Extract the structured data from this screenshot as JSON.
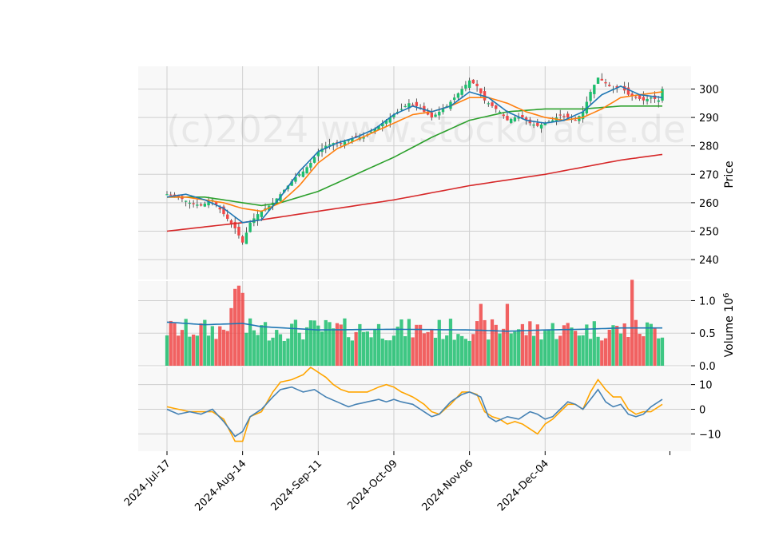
{
  "watermark": "(c)2024 www.stockoracle.de",
  "colors": {
    "up": "#1dbe6e",
    "down": "#f04747",
    "ma_short": "#1f77b4",
    "ma_mid": "#ff7f0e",
    "ma_long": "#2ca02c",
    "ma_200": "#d62728",
    "macd": "#4682b4",
    "signal": "#ffa500",
    "panel_bg": "#f8f8f8",
    "grid": "#cfcfcf"
  },
  "chart_data": {
    "type": "candlestick",
    "x_ticks": [
      "2024-Jul-17",
      "2024-Aug-14",
      "2024-Sep-11",
      "2024-Oct-09",
      "2024-Nov-06",
      "2024-Dec-04"
    ],
    "price_panel": {
      "ylabel": "Price",
      "ylim": [
        233,
        308
      ],
      "y_ticks": [
        240,
        250,
        260,
        270,
        280,
        290,
        300
      ],
      "close_anchors": [
        [
          0,
          263
        ],
        [
          3,
          262
        ],
        [
          6,
          260
        ],
        [
          9,
          259
        ],
        [
          12,
          261
        ],
        [
          15,
          256
        ],
        [
          18,
          251
        ],
        [
          20,
          246
        ],
        [
          22,
          253
        ],
        [
          24,
          256
        ],
        [
          26,
          258
        ],
        [
          28,
          260
        ],
        [
          30,
          263
        ],
        [
          32,
          266
        ],
        [
          34,
          269
        ],
        [
          36,
          271
        ],
        [
          38,
          274
        ],
        [
          40,
          278
        ],
        [
          42,
          280
        ],
        [
          44,
          281
        ],
        [
          46,
          281
        ],
        [
          48,
          282
        ],
        [
          50,
          283
        ],
        [
          52,
          283
        ],
        [
          54,
          285
        ],
        [
          56,
          287
        ],
        [
          58,
          289
        ],
        [
          60,
          291
        ],
        [
          62,
          293
        ],
        [
          64,
          295
        ],
        [
          66,
          294
        ],
        [
          68,
          292
        ],
        [
          70,
          290
        ],
        [
          72,
          292
        ],
        [
          74,
          294
        ],
        [
          76,
          297
        ],
        [
          78,
          300
        ],
        [
          80,
          303
        ],
        [
          82,
          301
        ],
        [
          84,
          296
        ],
        [
          86,
          294
        ],
        [
          88,
          292
        ],
        [
          90,
          289
        ],
        [
          92,
          290
        ],
        [
          94,
          290
        ],
        [
          96,
          288
        ],
        [
          98,
          287
        ],
        [
          100,
          288
        ],
        [
          102,
          289
        ],
        [
          104,
          291
        ],
        [
          106,
          290
        ],
        [
          108,
          289
        ],
        [
          110,
          292
        ],
        [
          112,
          299
        ],
        [
          114,
          304
        ],
        [
          116,
          302
        ],
        [
          118,
          300
        ],
        [
          120,
          301
        ],
        [
          122,
          298
        ],
        [
          124,
          297
        ],
        [
          126,
          296
        ],
        [
          128,
          297
        ],
        [
          130,
          296
        ],
        [
          131,
          300
        ]
      ],
      "ma_short_anchors": [
        [
          0,
          262
        ],
        [
          5,
          263
        ],
        [
          10,
          261
        ],
        [
          15,
          258
        ],
        [
          20,
          253
        ],
        [
          25,
          254
        ],
        [
          30,
          262
        ],
        [
          35,
          271
        ],
        [
          40,
          278
        ],
        [
          45,
          281
        ],
        [
          50,
          283
        ],
        [
          55,
          286
        ],
        [
          60,
          291
        ],
        [
          65,
          294
        ],
        [
          70,
          292
        ],
        [
          75,
          294
        ],
        [
          80,
          299
        ],
        [
          85,
          297
        ],
        [
          90,
          292
        ],
        [
          95,
          289
        ],
        [
          100,
          288
        ],
        [
          105,
          289
        ],
        [
          110,
          292
        ],
        [
          115,
          298
        ],
        [
          120,
          301
        ],
        [
          125,
          298
        ],
        [
          131,
          297
        ]
      ],
      "ma_mid_anchors": [
        [
          0,
          262
        ],
        [
          5,
          262
        ],
        [
          10,
          261
        ],
        [
          15,
          260
        ],
        [
          20,
          258
        ],
        [
          25,
          257
        ],
        [
          30,
          260
        ],
        [
          35,
          266
        ],
        [
          40,
          274
        ],
        [
          45,
          279
        ],
        [
          50,
          282
        ],
        [
          55,
          285
        ],
        [
          60,
          288
        ],
        [
          65,
          291
        ],
        [
          70,
          292
        ],
        [
          75,
          294
        ],
        [
          80,
          297
        ],
        [
          85,
          297
        ],
        [
          90,
          295
        ],
        [
          95,
          292
        ],
        [
          100,
          290
        ],
        [
          105,
          289
        ],
        [
          110,
          290
        ],
        [
          115,
          293
        ],
        [
          120,
          297
        ],
        [
          125,
          298
        ],
        [
          131,
          299
        ]
      ],
      "ma_long_anchors": [
        [
          0,
          262
        ],
        [
          10,
          262
        ],
        [
          20,
          260
        ],
        [
          25,
          259
        ],
        [
          30,
          260
        ],
        [
          40,
          264
        ],
        [
          50,
          270
        ],
        [
          60,
          276
        ],
        [
          70,
          283
        ],
        [
          80,
          289
        ],
        [
          90,
          292
        ],
        [
          100,
          293
        ],
        [
          110,
          293
        ],
        [
          120,
          294
        ],
        [
          131,
          294
        ]
      ],
      "ma_200_anchors": [
        [
          0,
          250
        ],
        [
          20,
          253
        ],
        [
          40,
          257
        ],
        [
          60,
          261
        ],
        [
          80,
          266
        ],
        [
          100,
          270
        ],
        [
          120,
          275
        ],
        [
          131,
          277
        ]
      ]
    },
    "volume_panel": {
      "ylabel": "Volume  10",
      "ylabel_exponent": "6",
      "ylim": [
        0,
        1.3
      ],
      "y_ticks": [
        0.0,
        0.5,
        1.0
      ],
      "ma_anchors": [
        [
          0,
          0.67
        ],
        [
          10,
          0.63
        ],
        [
          20,
          0.65
        ],
        [
          25,
          0.6
        ],
        [
          40,
          0.55
        ],
        [
          60,
          0.56
        ],
        [
          80,
          0.55
        ],
        [
          90,
          0.53
        ],
        [
          100,
          0.55
        ],
        [
          110,
          0.56
        ],
        [
          120,
          0.58
        ],
        [
          131,
          0.58
        ]
      ]
    },
    "macd_panel": {
      "ylim": [
        -17,
        17
      ],
      "y_ticks": [
        -10,
        0,
        10
      ],
      "macd_anchors": [
        [
          0,
          0
        ],
        [
          3,
          -2
        ],
        [
          6,
          -1
        ],
        [
          9,
          -2
        ],
        [
          12,
          0
        ],
        [
          15,
          -5
        ],
        [
          18,
          -11
        ],
        [
          20,
          -9
        ],
        [
          22,
          -3
        ],
        [
          25,
          0
        ],
        [
          28,
          5
        ],
        [
          30,
          8
        ],
        [
          33,
          9
        ],
        [
          36,
          7
        ],
        [
          39,
          8
        ],
        [
          42,
          5
        ],
        [
          45,
          3
        ],
        [
          48,
          1
        ],
        [
          50,
          2
        ],
        [
          53,
          3
        ],
        [
          56,
          4
        ],
        [
          58,
          3
        ],
        [
          60,
          4
        ],
        [
          62,
          3
        ],
        [
          65,
          2
        ],
        [
          68,
          -1
        ],
        [
          70,
          -3
        ],
        [
          72,
          -2
        ],
        [
          75,
          3
        ],
        [
          78,
          6
        ],
        [
          80,
          7
        ],
        [
          83,
          5
        ],
        [
          85,
          -3
        ],
        [
          87,
          -5
        ],
        [
          90,
          -3
        ],
        [
          93,
          -4
        ],
        [
          96,
          -1
        ],
        [
          98,
          -2
        ],
        [
          100,
          -4
        ],
        [
          102,
          -3
        ],
        [
          104,
          0
        ],
        [
          106,
          3
        ],
        [
          108,
          2
        ],
        [
          110,
          0
        ],
        [
          112,
          4
        ],
        [
          114,
          8
        ],
        [
          116,
          3
        ],
        [
          118,
          1
        ],
        [
          120,
          2
        ],
        [
          122,
          -2
        ],
        [
          124,
          -3
        ],
        [
          126,
          -2
        ],
        [
          128,
          1
        ],
        [
          131,
          4
        ]
      ],
      "signal_anchors": [
        [
          0,
          1
        ],
        [
          3,
          0
        ],
        [
          6,
          -1
        ],
        [
          9,
          -1
        ],
        [
          12,
          -1
        ],
        [
          15,
          -4
        ],
        [
          18,
          -13
        ],
        [
          20,
          -13
        ],
        [
          22,
          -3
        ],
        [
          25,
          -1
        ],
        [
          28,
          7
        ],
        [
          30,
          11
        ],
        [
          33,
          12
        ],
        [
          36,
          14
        ],
        [
          38,
          17
        ],
        [
          40,
          15
        ],
        [
          42,
          13
        ],
        [
          44,
          10
        ],
        [
          46,
          8
        ],
        [
          48,
          7
        ],
        [
          50,
          7
        ],
        [
          53,
          7
        ],
        [
          56,
          9
        ],
        [
          58,
          10
        ],
        [
          60,
          9
        ],
        [
          62,
          7
        ],
        [
          65,
          5
        ],
        [
          68,
          2
        ],
        [
          70,
          -1
        ],
        [
          72,
          -2
        ],
        [
          75,
          2
        ],
        [
          78,
          7
        ],
        [
          80,
          7
        ],
        [
          82,
          6
        ],
        [
          84,
          -1
        ],
        [
          86,
          -3
        ],
        [
          88,
          -4
        ],
        [
          90,
          -6
        ],
        [
          92,
          -5
        ],
        [
          94,
          -6
        ],
        [
          96,
          -8
        ],
        [
          98,
          -10
        ],
        [
          100,
          -6
        ],
        [
          102,
          -4
        ],
        [
          104,
          -1
        ],
        [
          106,
          2
        ],
        [
          108,
          2
        ],
        [
          110,
          0
        ],
        [
          112,
          7
        ],
        [
          114,
          12
        ],
        [
          116,
          8
        ],
        [
          118,
          5
        ],
        [
          120,
          5
        ],
        [
          122,
          0
        ],
        [
          124,
          -2
        ],
        [
          126,
          -1
        ],
        [
          128,
          -1
        ],
        [
          131,
          2
        ]
      ]
    }
  }
}
